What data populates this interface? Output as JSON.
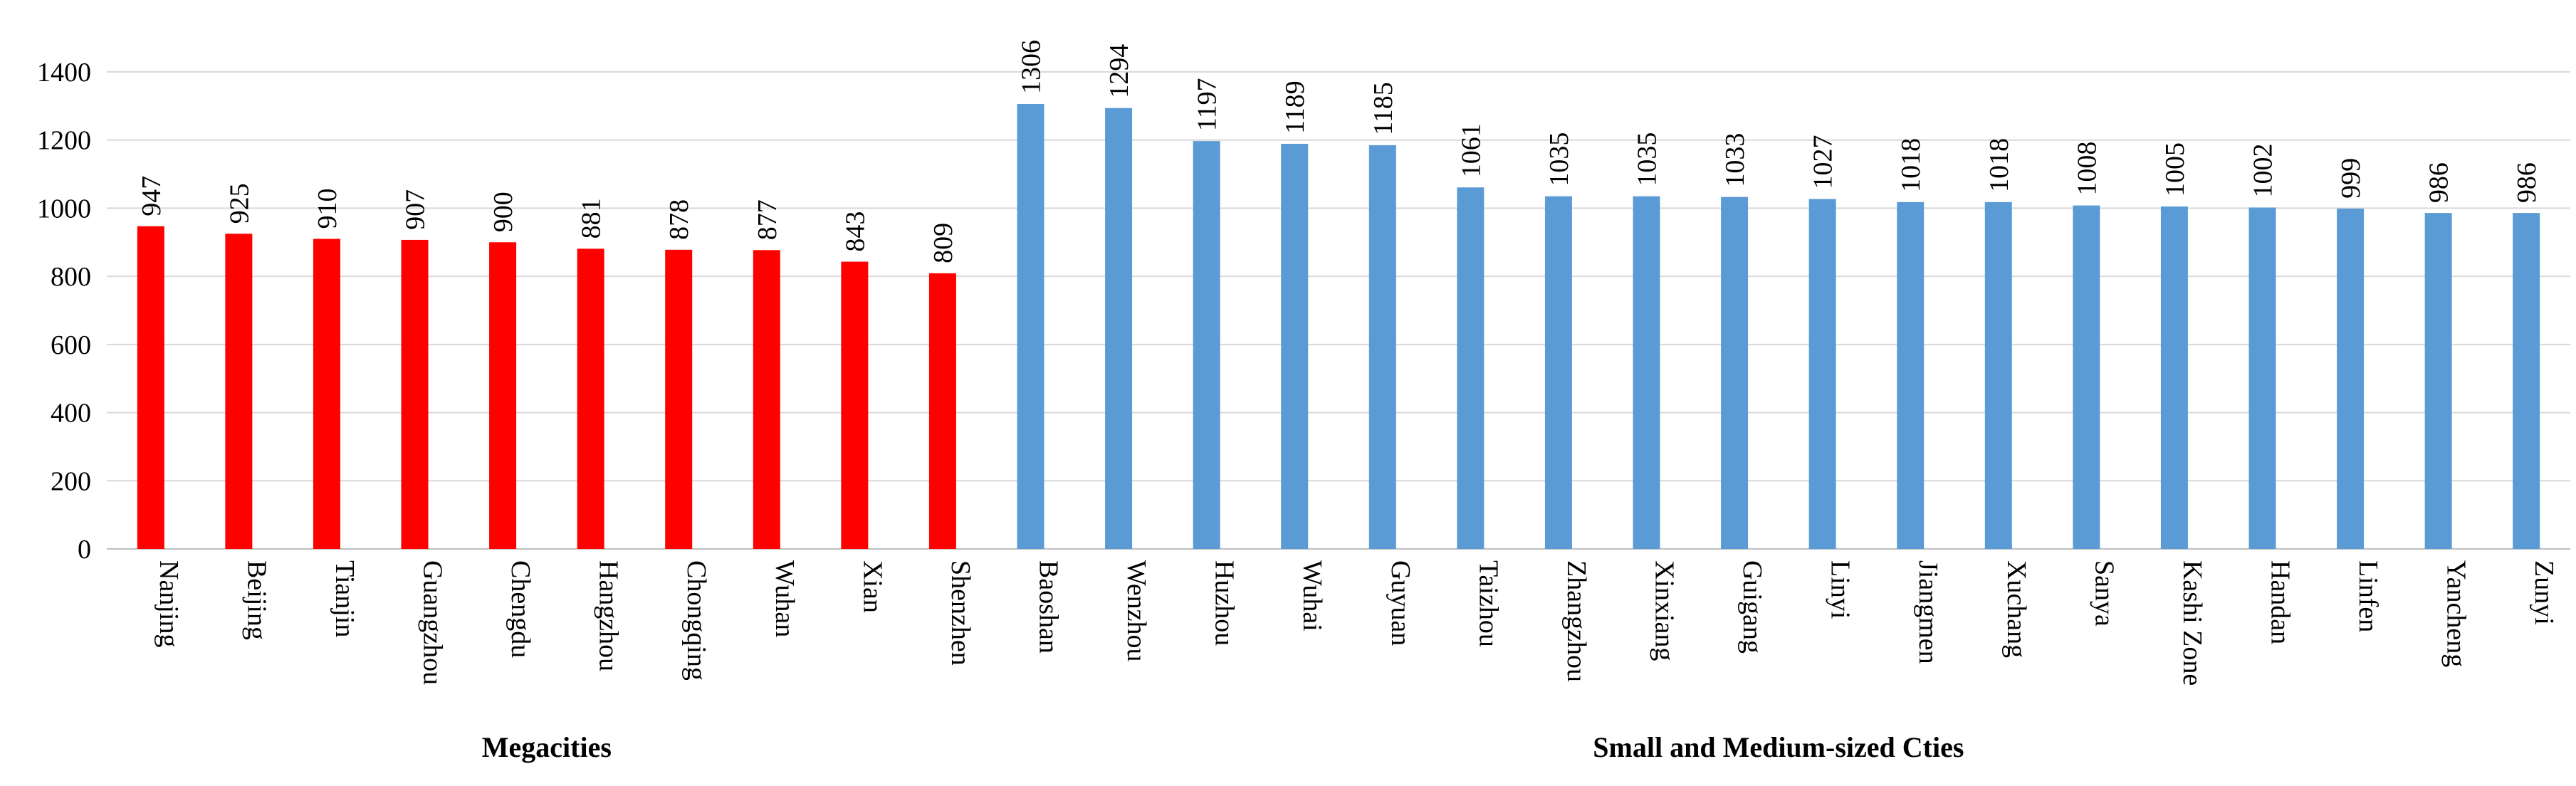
{
  "chart_data": {
    "type": "bar",
    "categories": [
      "Nanjing",
      "Beijing",
      "Tianjin",
      "Guangzhou",
      "Chengdu",
      "Hangzhou",
      "Chongqing",
      "Wuhan",
      "Xian",
      "Shenzhen",
      "Baoshan",
      "Wenzhou",
      "Huzhou",
      "Wuhai",
      "Guyuan",
      "Taizhou",
      "Zhangzhou",
      "Xinxiang",
      "Guigang",
      "Linyi",
      "Jiangmen",
      "Xuchang",
      "Sanya",
      "Kashi Zone",
      "Handan",
      "Linfen",
      "Yancheng",
      "Zunyi"
    ],
    "values": [
      947,
      925,
      910,
      907,
      900,
      881,
      878,
      877,
      843,
      809,
      1306,
      1294,
      1197,
      1189,
      1185,
      1061,
      1035,
      1035,
      1033,
      1027,
      1018,
      1018,
      1008,
      1005,
      1002,
      999,
      986,
      986
    ],
    "data_labels": [
      "947",
      "925",
      "910",
      "907",
      "900",
      "881",
      "878",
      "877",
      "843",
      "809",
      "1306",
      "1294",
      "1197",
      "1189",
      "1185",
      "1061",
      "1035",
      "1035",
      "1033",
      "1027",
      "1018",
      "1018",
      "1008",
      "1005",
      "1002",
      "999",
      "986",
      "986"
    ],
    "groups": [
      {
        "label": "Megacities",
        "count": 10,
        "color": "#ff0000"
      },
      {
        "label": "Small and Medium-sized Cties",
        "count": 18,
        "color": "#5b9bd5"
      }
    ],
    "ylim": [
      0,
      1400
    ],
    "yticks": [
      "0",
      "200",
      "400",
      "600",
      "800",
      "1000",
      "1200",
      "1400"
    ],
    "grid": true,
    "legend": "none",
    "title": "",
    "xlabel": "",
    "ylabel": ""
  }
}
